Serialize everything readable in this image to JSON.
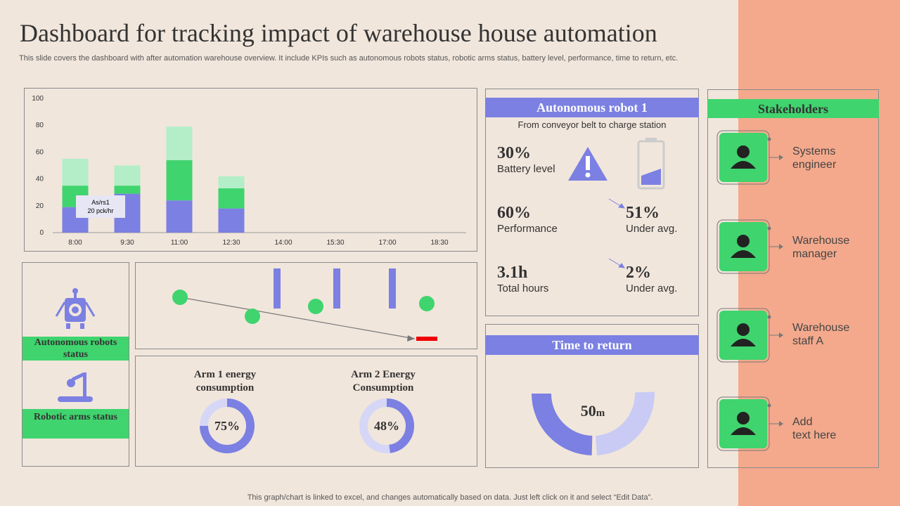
{
  "header": {
    "title": "Dashboard for tracking impact of warehouse house automation",
    "subtitle": "This slide covers the dashboard with after automation warehouse overview. It include KPIs such as autonomous robots status, robotic arms status, battery level, performance, time to return, etc."
  },
  "chart_data": [
    {
      "type": "bar",
      "stacked": true,
      "categories": [
        "8:00",
        "9:30",
        "11:00",
        "12:30",
        "14:00",
        "15:30",
        "17:00",
        "18:30"
      ],
      "series": [
        {
          "color": "#7b80e2",
          "values": [
            19,
            29,
            24,
            18,
            null,
            null,
            null,
            null
          ]
        },
        {
          "color": "#3fd46e",
          "values": [
            16,
            6,
            30,
            15,
            null,
            null,
            null,
            null
          ]
        },
        {
          "color": "#b3eec8",
          "values": [
            20,
            15,
            25,
            9,
            null,
            null,
            null,
            null
          ]
        }
      ],
      "ylim": [
        0,
        100
      ],
      "yticks": [
        0,
        20,
        40,
        60,
        80,
        100
      ],
      "annotation": [
        "As/rs1",
        "20 pck/hr"
      ]
    },
    {
      "type": "donut",
      "title": "Arm 1 energy consumption",
      "values": [
        75
      ],
      "value_labels": [
        "75%"
      ],
      "color": "#7b80e2",
      "total": 100
    },
    {
      "type": "donut",
      "title": "Arm 2 Energy Consumption",
      "values": [
        48
      ],
      "value_labels": [
        "48%"
      ],
      "color": "#7b80e2",
      "total": 100
    }
  ],
  "status_panel": {
    "robots": "Autonomous robots status",
    "arms": "Robotic arms status"
  },
  "robot_panel": {
    "title": "Autonomous robot 1",
    "subtitle": "From conveyor belt to charge station",
    "kpis": [
      {
        "value": "30%",
        "label": "Battery level"
      },
      {
        "value": "60%",
        "label": "Performance"
      },
      {
        "value": "51%",
        "label": "Under avg."
      },
      {
        "value": "3.1h",
        "label": "Total hours"
      },
      {
        "value": "2%",
        "label": "Under avg."
      }
    ]
  },
  "return_panel": {
    "title": "Time to return",
    "value": "50",
    "unit": "m"
  },
  "stakeholders": {
    "title": "Stakeholders",
    "items": [
      "Systems\nengineer",
      "Warehouse\nmanager",
      "Warehouse\nstaff A",
      "Add\ntext here"
    ]
  },
  "footer": "This graph/chart is linked to excel,  and changes automatically based on data. Just left click on it and select “Edit Data”."
}
